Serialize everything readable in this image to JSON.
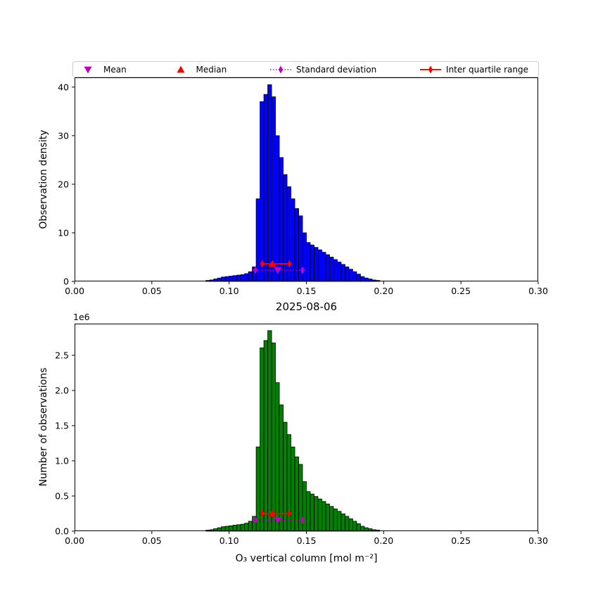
{
  "figure": {
    "title": "2025-08-06",
    "background": "#ffffff",
    "marker_colors": {
      "mean": "#bf00bf",
      "median": "#ff0000",
      "std": "#bf00bf",
      "iqr": "#ff0000"
    },
    "legend": [
      {
        "label": "Mean",
        "marker": "triangle-down",
        "line": "none",
        "color": "#bf00bf"
      },
      {
        "label": "Median",
        "marker": "triangle-up",
        "line": "none",
        "color": "#ff0000"
      },
      {
        "label": "Standard deviation",
        "marker": "thin-diamond",
        "line": "dotted",
        "color": "#bf00bf"
      },
      {
        "label": "Inter quartile range",
        "marker": "thin-diamond",
        "line": "solid",
        "color": "#ff0000"
      }
    ]
  },
  "chart_data": [
    {
      "type": "bar",
      "title": "",
      "ylabel": "Observation density",
      "xlabel": "",
      "xlim": [
        0.0,
        0.3
      ],
      "ylim": [
        0,
        42
      ],
      "bar_color": "#0000ff",
      "bar_edge_color": "#000000",
      "bin_start": 0.085,
      "bin_width": 0.0025,
      "values": [
        0.2,
        0.3,
        0.5,
        0.7,
        0.9,
        1.0,
        1.1,
        1.2,
        1.3,
        1.4,
        1.6,
        2.0,
        3.0,
        17.0,
        37.0,
        38.5,
        40.5,
        38.0,
        30.0,
        25.5,
        22.0,
        19.5,
        17.0,
        15.0,
        13.5,
        10.0,
        8.0,
        7.5,
        7.0,
        6.5,
        6.0,
        5.5,
        5.0,
        4.5,
        4.0,
        3.5,
        3.0,
        2.5,
        2.0,
        1.5,
        1.0,
        0.7,
        0.5,
        0.3,
        0.2
      ],
      "xtick_values": [
        0.0,
        0.05,
        0.1,
        0.15,
        0.2,
        0.25,
        0.3
      ],
      "xtick_labels": [
        "0.00",
        "0.05",
        "0.10",
        "0.15",
        "0.20",
        "0.25",
        "0.30"
      ],
      "ytick_values": [
        0,
        10,
        20,
        30,
        40
      ],
      "ytick_labels": [
        "0",
        "10",
        "20",
        "30",
        "40"
      ],
      "markers": {
        "mean": {
          "x": 0.1315,
          "y": 2.3
        },
        "median": {
          "x": 0.128,
          "y": 3.6
        },
        "std": {
          "x1": 0.117,
          "x2": 0.1475,
          "y": 2.3
        },
        "iqr": {
          "x1": 0.1215,
          "x2": 0.139,
          "y": 3.6
        }
      }
    },
    {
      "type": "bar",
      "title": "2025-08-06",
      "ylabel": "Number of observations",
      "xlabel": "O₃ vertical column [mol m⁻²]",
      "y_multiplier": "1e6",
      "xlim": [
        0.0,
        0.3
      ],
      "ylim": [
        0,
        2.95
      ],
      "bar_color": "#008000",
      "bar_edge_color": "#000000",
      "bin_start": 0.085,
      "bin_width": 0.0025,
      "values": [
        0.014,
        0.021,
        0.035,
        0.049,
        0.063,
        0.07,
        0.077,
        0.085,
        0.092,
        0.099,
        0.113,
        0.141,
        0.211,
        1.197,
        2.605,
        2.71,
        2.851,
        2.675,
        2.112,
        1.795,
        1.549,
        1.373,
        1.197,
        1.056,
        0.95,
        0.704,
        0.563,
        0.528,
        0.493,
        0.458,
        0.422,
        0.387,
        0.352,
        0.317,
        0.282,
        0.246,
        0.211,
        0.176,
        0.141,
        0.106,
        0.07,
        0.049,
        0.035,
        0.021,
        0.014
      ],
      "xtick_values": [
        0.0,
        0.05,
        0.1,
        0.15,
        0.2,
        0.25,
        0.3
      ],
      "xtick_labels": [
        "0.00",
        "0.05",
        "0.10",
        "0.15",
        "0.20",
        "0.25",
        "0.30"
      ],
      "ytick_values": [
        0,
        0.5,
        1.0,
        1.5,
        2.0,
        2.5
      ],
      "ytick_labels": [
        "0.0",
        "0.5",
        "1.0",
        "1.5",
        "2.0",
        "2.5"
      ],
      "markers": {
        "mean": {
          "x": 0.1315,
          "y": 0.155
        },
        "median": {
          "x": 0.128,
          "y": 0.25
        },
        "std": {
          "x1": 0.117,
          "x2": 0.1475,
          "y": 0.155
        },
        "iqr": {
          "x1": 0.1215,
          "x2": 0.139,
          "y": 0.25
        }
      }
    }
  ]
}
